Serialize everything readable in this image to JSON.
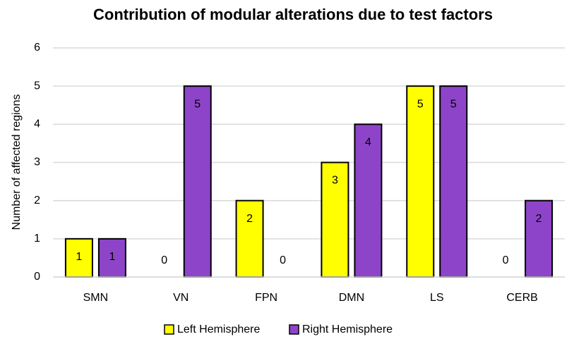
{
  "chart_data": {
    "type": "bar",
    "title": "Contribution of modular alterations due to test factors",
    "y_label": "Number of affected regions",
    "categories": [
      "SMN",
      "VN",
      "FPN",
      "DMN",
      "LS",
      "CERB"
    ],
    "series": [
      {
        "name": "Left Hemisphere",
        "color": "#ffff00",
        "values": [
          1,
          0,
          2,
          3,
          5,
          0
        ]
      },
      {
        "name": "Right Hemisphere",
        "color": "#8e44c8",
        "values": [
          1,
          5,
          0,
          4,
          5,
          2
        ]
      }
    ],
    "ylim": [
      0,
      6
    ],
    "yticks": [
      0,
      1,
      2,
      3,
      4,
      5,
      6
    ],
    "grid": true,
    "legend": "bottom"
  }
}
